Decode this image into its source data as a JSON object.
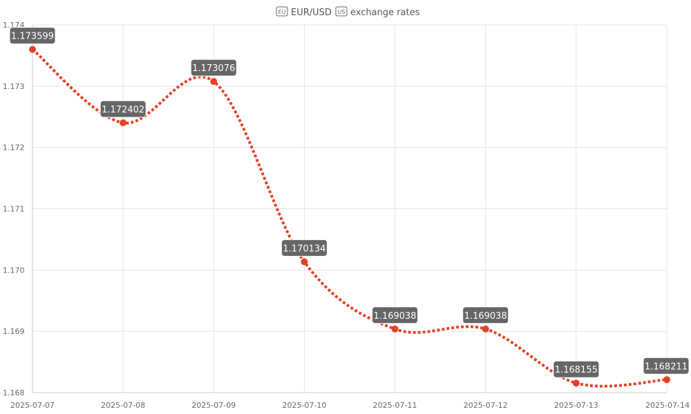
{
  "chart_data": {
    "type": "line",
    "title": "EUR/USD exchange rates",
    "title_parts": {
      "before_icon": "EU",
      "after_icon": "US",
      "pair": "EUR/USD",
      "suffix": "exchange rates"
    },
    "x": [
      "2025-07-07",
      "2025-07-08",
      "2025-07-09",
      "2025-07-10",
      "2025-07-11",
      "2025-07-12",
      "2025-07-13",
      "2025-07-14"
    ],
    "series": [
      {
        "values": [
          1.173599,
          1.172402,
          1.173076,
          1.170134,
          1.169038,
          1.169038,
          1.168155,
          1.168211
        ],
        "labels": [
          "1.173599",
          "1.172402",
          "1.173076",
          "1.170134",
          "1.169038",
          "1.169038",
          "1.168155",
          "1.168211"
        ],
        "color": "#e0442a",
        "line_style": "dashed"
      }
    ],
    "y_ticks": [
      "1.168",
      "1.169",
      "1.170",
      "1.171",
      "1.172",
      "1.173",
      "1.174"
    ],
    "ylim": [
      1.168,
      1.174
    ],
    "xlabel": "",
    "ylabel": "",
    "grid": true,
    "legend": "none"
  }
}
